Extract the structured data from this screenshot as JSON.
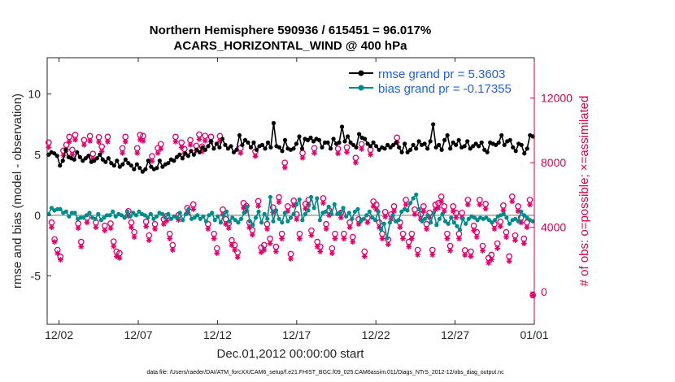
{
  "chart_data": {
    "type": "line",
    "title_line1": "Northern Hemisphere 590936 / 615451 = 96.017%",
    "title_line2": "ACARS_HORIZONTAL_WIND @ 400 hPa",
    "xlabel": "Dec.01,2012 00:00:00 start",
    "ylabel_left": "rmse and bias (model - observation)",
    "ylabel_right": "# of obs: o=possible; ×=assimilated",
    "footer": "data file: /Users/raeder/DAI/ATM_forcXX/CAM6_setup/f.e21.FHIST_BGC.f09_025.CAM6assim.011/Diags_NTrS_2012-12/obs_diag_output.nc",
    "x_ticks": [
      "12/02",
      "12/07",
      "12/12",
      "12/17",
      "12/22",
      "12/27",
      "01/01"
    ],
    "x_tick_days": [
      1,
      6,
      11,
      16,
      21,
      26,
      31
    ],
    "xlim_days": [
      0.25,
      31.0
    ],
    "y_left_ticks": [
      "-5",
      "0",
      "5",
      "10"
    ],
    "y_left_tick_values": [
      -5,
      0,
      5,
      10
    ],
    "ylim_left": [
      -9,
      13
    ],
    "y_right_ticks": [
      "0",
      "4000",
      "8000",
      "12000"
    ],
    "y_right_tick_values": [
      0,
      4000,
      8000,
      12000
    ],
    "ylim_right": [
      -2000,
      14500
    ],
    "series": [
      {
        "name": "rmse grand pr = 5.3603",
        "color": "#000000",
        "axis": "left",
        "values": [
          5.0,
          5.2,
          5.1,
          4.9,
          4.1,
          4.5,
          5.4,
          4.8,
          4.7,
          4.6,
          5.2,
          4.8,
          4.5,
          4.7,
          4.9,
          4.4,
          4.5,
          4.7,
          5.0,
          4.6,
          4.4,
          4.7,
          4.3,
          4.1,
          4.5,
          4.0,
          4.2,
          4.6,
          4.3,
          4.1,
          3.8,
          4.2,
          3.9,
          3.6,
          3.8,
          4.5,
          4.0,
          3.8,
          3.9,
          4.5,
          4.0,
          4.2,
          4.3,
          4.6,
          4.5,
          4.8,
          5.0,
          4.7,
          5.1,
          4.9,
          5.3,
          5.0,
          5.4,
          5.2,
          5.6,
          5.4,
          5.7,
          6.1,
          5.5,
          5.9,
          5.6,
          6.3,
          5.8,
          5.5,
          5.7,
          5.2,
          5.4,
          6.6,
          5.8,
          6.2,
          6.0,
          5.6,
          6.0,
          5.4,
          5.7,
          5.8,
          5.5,
          6.0,
          5.6,
          7.6,
          5.7,
          5.6,
          5.3,
          6.2,
          5.5,
          5.4,
          5.5,
          5.9,
          6.5,
          5.5,
          6.3,
          6.2,
          6.4,
          6.1,
          6.3,
          6.2,
          5.6,
          6.0,
          6.0,
          5.5,
          6.3,
          5.9,
          6.0,
          7.3,
          6.1,
          6.5,
          6.0,
          5.8,
          5.6,
          6.7,
          6.4,
          6.3,
          5.9,
          5.7,
          6.0,
          5.7,
          5.4,
          5.6,
          5.5,
          5.8,
          5.6,
          5.8,
          6.0,
          5.6,
          5.2,
          5.9,
          5.2,
          5.4,
          5.8,
          5.5,
          6.1,
          5.8,
          5.9,
          5.5,
          6.1,
          7.5,
          5.6,
          5.8,
          5.4,
          6.2,
          6.6,
          5.5,
          6.0,
          5.8,
          6.2,
          5.6,
          5.7,
          6.1,
          5.5,
          5.7,
          5.9,
          5.7,
          6.0,
          5.4,
          5.2,
          6.0,
          5.9,
          5.8,
          6.0,
          6.6,
          5.8,
          6.1,
          6.2,
          5.6,
          5.3,
          5.9,
          5.8,
          5.1,
          5.5,
          6.6,
          6.5
        ]
      },
      {
        "name": "bias grand pr = -0.17355",
        "color": "#008b8b",
        "axis": "left",
        "values": [
          0.1,
          0.6,
          0.4,
          0.5,
          0.5,
          0.2,
          0.3,
          -0.1,
          0.2,
          0.2,
          -0.3,
          -0.2,
          -0.2,
          0.0,
          0.2,
          -0.2,
          -0.3,
          0.1,
          -0.4,
          -0.2,
          0.0,
          0.0,
          0.3,
          -0.1,
          0.1,
          0.0,
          -0.2,
          0.3,
          -0.1,
          0.2,
          0.0,
          0.3,
          0.1,
          0.0,
          -0.2,
          0.1,
          -0.3,
          -0.1,
          0.2,
          0.1,
          -0.2,
          0.1,
          -0.3,
          -0.1,
          -0.2,
          0.2,
          -0.4,
          0.1,
          0.5,
          -0.3,
          -0.2,
          0.0,
          -0.3,
          -0.1,
          -0.5,
          0.0,
          0.2,
          -0.4,
          -0.1,
          -0.6,
          0.0,
          0.3,
          -0.5,
          -0.2,
          -0.4,
          -0.6,
          -0.3,
          0.2,
          0.7,
          -0.5,
          -0.8,
          -0.2,
          0.3,
          -0.6,
          0.1,
          -0.3,
          1.5,
          -0.5,
          0.4,
          -0.3,
          -0.6,
          0.2,
          -0.5,
          -0.2,
          0.1,
          0.9,
          1.3,
          -0.4,
          0.1,
          0.4,
          1.5,
          0.6,
          1.4,
          -0.4,
          0.2,
          0.3,
          0.7,
          0.1,
          0.9,
          0.1,
          0.2,
          0.6,
          -0.1,
          0.2,
          -0.3,
          0.3,
          0.5,
          -0.5,
          -0.3,
          0.0,
          0.3,
          -0.2,
          -0.4,
          0.3,
          -1.2,
          -0.7,
          -1.9,
          -0.6,
          0.0,
          -0.5,
          -0.4,
          0.3,
          0.5,
          0.4,
          1.0,
          1.4,
          1.7,
          0.5,
          -0.5,
          -0.3,
          0.0,
          -0.6,
          0.2,
          -0.8,
          -0.3,
          0.1,
          -0.5,
          -0.7,
          -0.2,
          -0.6,
          -0.9,
          -1.2,
          -0.3,
          -0.7,
          -0.3,
          -0.1,
          -0.2,
          -0.4,
          -0.2,
          -0.3,
          -0.2,
          -0.4,
          -0.6,
          -0.4,
          -0.1,
          0.0,
          0.1,
          -0.2,
          -0.7,
          -0.4,
          -0.3,
          -0.5,
          0.3,
          0.0,
          -0.2,
          -0.4,
          -0.5
        ]
      }
    ],
    "obs_series": [
      {
        "name": "possible",
        "marker": "o",
        "color": "#e0006a",
        "axis": "right",
        "values": [
          9250,
          4300,
          3260,
          2600,
          2180,
          8750,
          9100,
          9600,
          8800,
          9720,
          4240,
          3100,
          9400,
          4600,
          9650,
          8550,
          4300,
          9580,
          9000,
          4100,
          9600,
          4240,
          3120,
          2500,
          2400,
          8900,
          9600,
          5000,
          4300,
          3700,
          8900,
          9720,
          9650,
          4350,
          3500,
          8400,
          4200,
          8900,
          9150,
          4500,
          4700,
          3600,
          2900,
          9600,
          4760,
          9250,
          8850,
          5200,
          9400,
          5420,
          9050,
          9750,
          9000,
          9660,
          4200,
          9600,
          3600,
          2700,
          9650,
          5100,
          4500,
          4250,
          3200,
          2900,
          2450,
          8900,
          5500,
          5320,
          4300,
          3840,
          8700,
          5620,
          2750,
          2900,
          4200,
          3300,
          5230,
          2800,
          5860,
          3600,
          8000,
          5300,
          2350,
          5650,
          4800,
          3600,
          8600,
          5450,
          5700,
          3800,
          8900,
          3100,
          2800,
          5800,
          4200,
          5050,
          2700,
          3600,
          8870,
          4900,
          3600,
          8950,
          4300,
          3400,
          8300,
          4500,
          9150,
          2500,
          4600,
          8800,
          5600,
          5400,
          4300,
          3600,
          4950,
          3240,
          4800,
          5300,
          9550,
          4300,
          3600,
          5700,
          3100,
          3600,
          5100,
          2600,
          4800,
          5300,
          4200,
          4900,
          2600,
          5400,
          5500,
          5900,
          5300,
          3600,
          2850,
          5300,
          4900,
          3600,
          4900,
          2580,
          5700,
          2500,
          4100,
          3700,
          5700,
          2850,
          5450,
          2100,
          2300,
          4200,
          3000,
          4350,
          5350,
          3700,
          2200,
          5900,
          3500,
          5300,
          4600,
          3300,
          4300,
          5700,
          -200
        ]
      },
      {
        "name": "assimilated",
        "marker": "*",
        "color": "#e0006a",
        "axis": "right",
        "values": [
          8950,
          4000,
          3100,
          2400,
          2000,
          8450,
          8800,
          9300,
          8500,
          9420,
          3950,
          2800,
          9100,
          4300,
          9350,
          8250,
          4000,
          9280,
          8700,
          3800,
          9300,
          3940,
          2820,
          2200,
          2100,
          8600,
          9300,
          4700,
          4000,
          3400,
          8600,
          9420,
          9350,
          4050,
          3200,
          8100,
          3900,
          8600,
          8850,
          4200,
          4400,
          3300,
          2600,
          9300,
          4460,
          8950,
          8550,
          4900,
          9100,
          5120,
          8750,
          9450,
          8700,
          9360,
          3900,
          9300,
          3300,
          2400,
          9350,
          4800,
          4200,
          3950,
          2900,
          2600,
          2150,
          8600,
          5200,
          5020,
          4000,
          3540,
          8400,
          5320,
          2450,
          2600,
          3900,
          3000,
          4930,
          2500,
          5560,
          3300,
          7700,
          5000,
          2050,
          5350,
          4500,
          3300,
          8300,
          5150,
          5400,
          3500,
          8600,
          2800,
          2500,
          5500,
          3900,
          4750,
          2400,
          3300,
          8570,
          4600,
          3300,
          8650,
          4000,
          3100,
          8000,
          4200,
          8850,
          2200,
          4300,
          8500,
          5300,
          5100,
          4000,
          3300,
          4650,
          2940,
          4500,
          5000,
          9250,
          4000,
          3300,
          5400,
          2800,
          3300,
          4800,
          2300,
          4500,
          5000,
          3900,
          4600,
          2300,
          5100,
          5200,
          5600,
          5000,
          3300,
          2550,
          5000,
          4600,
          3300,
          4600,
          2280,
          5400,
          2200,
          3800,
          3400,
          5400,
          2550,
          5150,
          1800,
          2000,
          3900,
          2700,
          4050,
          5050,
          3400,
          1900,
          5600,
          3200,
          5000,
          4300,
          3000,
          4000,
          5400,
          -200
        ]
      }
    ]
  }
}
